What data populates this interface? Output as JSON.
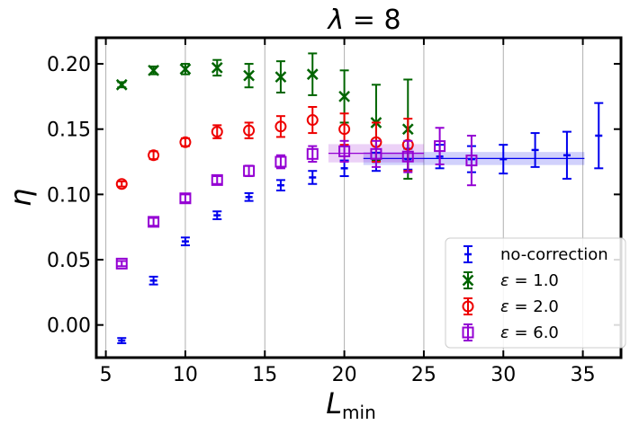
{
  "chart_data": {
    "type": "scatter",
    "title": "λ = 8",
    "title_symbol": "λ",
    "title_rest": " = 8",
    "xlabel": "L",
    "xlabel_sub": "min",
    "ylabel": "η",
    "xlim": [
      4.4,
      37.4
    ],
    "ylim": [
      -0.025,
      0.22
    ],
    "xticks": [
      5,
      10,
      15,
      20,
      25,
      30,
      35
    ],
    "yticks": [
      0.0,
      0.05,
      0.1,
      0.15,
      0.2
    ],
    "xtick_labels": [
      "5",
      "10",
      "15",
      "20",
      "25",
      "30",
      "35"
    ],
    "ytick_labels": [
      "0.00",
      "0.05",
      "0.10",
      "0.15",
      "0.20"
    ],
    "grid": "vertical",
    "legend_position": "lower-right",
    "series": [
      {
        "name": "no-correction",
        "legend_prefix": "",
        "legend_value": "no-correction",
        "color": "#0000ee",
        "marker": "dash",
        "points": [
          {
            "x": 6,
            "y": -0.012,
            "err": 0.002
          },
          {
            "x": 8,
            "y": 0.034,
            "err": 0.003
          },
          {
            "x": 10,
            "y": 0.064,
            "err": 0.003
          },
          {
            "x": 12,
            "y": 0.084,
            "err": 0.003
          },
          {
            "x": 14,
            "y": 0.098,
            "err": 0.003
          },
          {
            "x": 16,
            "y": 0.107,
            "err": 0.004
          },
          {
            "x": 18,
            "y": 0.113,
            "err": 0.005
          },
          {
            "x": 20,
            "y": 0.12,
            "err": 0.006
          },
          {
            "x": 22,
            "y": 0.125,
            "err": 0.007
          },
          {
            "x": 24,
            "y": 0.127,
            "err": 0.008
          },
          {
            "x": 26,
            "y": 0.129,
            "err": 0.009
          },
          {
            "x": 28,
            "y": 0.127,
            "err": 0.01
          },
          {
            "x": 30,
            "y": 0.127,
            "err": 0.011
          },
          {
            "x": 32,
            "y": 0.134,
            "err": 0.013
          },
          {
            "x": 34,
            "y": 0.13,
            "err": 0.018
          },
          {
            "x": 36,
            "y": 0.145,
            "err": 0.025
          }
        ],
        "fit": {
          "value": 0.1275,
          "err": 0.005,
          "x_from": 21.2,
          "x_to": 35.1
        }
      },
      {
        "name": "ε = 1.0",
        "legend_prefix": "ε",
        "legend_value": " = 1.0",
        "color": "#006400",
        "marker": "x",
        "points": [
          {
            "x": 6,
            "y": 0.184,
            "err": 0.002
          },
          {
            "x": 8,
            "y": 0.195,
            "err": 0.003
          },
          {
            "x": 10,
            "y": 0.196,
            "err": 0.004
          },
          {
            "x": 12,
            "y": 0.197,
            "err": 0.006
          },
          {
            "x": 14,
            "y": 0.191,
            "err": 0.009
          },
          {
            "x": 16,
            "y": 0.19,
            "err": 0.012
          },
          {
            "x": 18,
            "y": 0.192,
            "err": 0.016
          },
          {
            "x": 20,
            "y": 0.175,
            "err": 0.02
          },
          {
            "x": 22,
            "y": 0.155,
            "err": 0.029
          },
          {
            "x": 24,
            "y": 0.15,
            "err": 0.038
          }
        ]
      },
      {
        "name": "ε = 2.0",
        "legend_prefix": "ε",
        "legend_value": " = 2.0",
        "color": "#ee0000",
        "marker": "o",
        "points": [
          {
            "x": 6,
            "y": 0.108,
            "err": 0.002
          },
          {
            "x": 8,
            "y": 0.13,
            "err": 0.003
          },
          {
            "x": 10,
            "y": 0.14,
            "err": 0.003
          },
          {
            "x": 12,
            "y": 0.148,
            "err": 0.005
          },
          {
            "x": 14,
            "y": 0.149,
            "err": 0.006
          },
          {
            "x": 16,
            "y": 0.152,
            "err": 0.008
          },
          {
            "x": 18,
            "y": 0.157,
            "err": 0.01
          },
          {
            "x": 20,
            "y": 0.15,
            "err": 0.012
          },
          {
            "x": 22,
            "y": 0.14,
            "err": 0.015
          },
          {
            "x": 24,
            "y": 0.138,
            "err": 0.02
          }
        ]
      },
      {
        "name": "ε = 6.0",
        "legend_prefix": "ε",
        "legend_value": " = 6.0",
        "color": "#9400d3",
        "marker": "s",
        "points": [
          {
            "x": 6,
            "y": 0.047,
            "err": 0.002
          },
          {
            "x": 8,
            "y": 0.079,
            "err": 0.003
          },
          {
            "x": 10,
            "y": 0.097,
            "err": 0.003
          },
          {
            "x": 12,
            "y": 0.111,
            "err": 0.003
          },
          {
            "x": 14,
            "y": 0.118,
            "err": 0.004
          },
          {
            "x": 16,
            "y": 0.125,
            "err": 0.005
          },
          {
            "x": 18,
            "y": 0.131,
            "err": 0.006
          },
          {
            "x": 20,
            "y": 0.133,
            "err": 0.008
          },
          {
            "x": 22,
            "y": 0.131,
            "err": 0.01
          },
          {
            "x": 24,
            "y": 0.129,
            "err": 0.012
          },
          {
            "x": 26,
            "y": 0.137,
            "err": 0.014
          },
          {
            "x": 28,
            "y": 0.126,
            "err": 0.019
          }
        ],
        "fit": {
          "value": 0.1315,
          "err": 0.007,
          "x_from": 19.0,
          "x_to": 25.0
        }
      }
    ]
  }
}
